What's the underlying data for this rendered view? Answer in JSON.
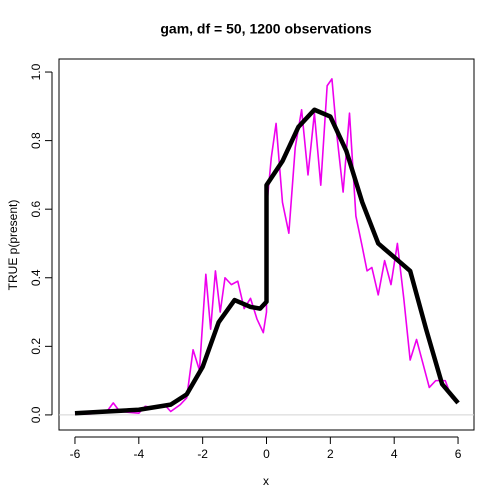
{
  "chart_data": {
    "type": "line",
    "title": "gam, df = 50, 1200 observations",
    "xlabel": "x",
    "ylabel": "TRUE p(present)",
    "xlim": [
      -6.5,
      6.5
    ],
    "ylim": [
      -0.044,
      1.038
    ],
    "xticks": [
      -6,
      -4,
      -2,
      0,
      2,
      4,
      6
    ],
    "yticks": [
      {
        "value": 0,
        "label": "0.0"
      },
      0.2,
      0.4,
      0.6,
      0.8,
      {
        "value": 1,
        "label": "1.0"
      }
    ],
    "hline": 0,
    "hline_color": "#d3d3d3",
    "series": [
      {
        "color": "#ee00ee",
        "linewidth": 1.6,
        "x": [
          -6,
          -5.5,
          -5,
          -4.8,
          -4.6,
          -4,
          -3.8,
          -3.5,
          -3.2,
          -3,
          -2.7,
          -2.5,
          -2.3,
          -2.1,
          -1.9,
          -1.75,
          -1.6,
          -1.45,
          -1.3,
          -1.1,
          -0.9,
          -0.7,
          -0.5,
          -0.3,
          -0.1,
          0,
          0,
          0.15,
          0.3,
          0.5,
          0.7,
          0.9,
          1.1,
          1.3,
          1.5,
          1.7,
          1.9,
          2.05,
          2.2,
          2.4,
          2.6,
          2.8,
          3.0,
          3.15,
          3.3,
          3.5,
          3.7,
          3.9,
          4.1,
          4.3,
          4.5,
          4.7,
          4.9,
          5.1,
          5.3,
          5.6,
          5.8,
          6
        ],
        "values": [
          0.002,
          0.003,
          0.01,
          0.035,
          0.01,
          0.005,
          0.025,
          0.02,
          0.03,
          0.01,
          0.03,
          0.05,
          0.19,
          0.13,
          0.41,
          0.25,
          0.42,
          0.3,
          0.4,
          0.38,
          0.39,
          0.31,
          0.34,
          0.28,
          0.24,
          0.3,
          0.6,
          0.75,
          0.85,
          0.62,
          0.53,
          0.78,
          0.89,
          0.7,
          0.88,
          0.67,
          0.96,
          0.98,
          0.82,
          0.65,
          0.88,
          0.58,
          0.49,
          0.42,
          0.43,
          0.35,
          0.45,
          0.38,
          0.5,
          0.34,
          0.16,
          0.22,
          0.15,
          0.08,
          0.1,
          0.1,
          0.05,
          0.04
        ]
      },
      {
        "color": "#000000",
        "linewidth": 4.5,
        "x": [
          -6,
          -5,
          -4,
          -3,
          -2.5,
          -2,
          -1.5,
          -1,
          -0.5,
          -0.2,
          0,
          0,
          0.5,
          1,
          1.5,
          2,
          2.5,
          3,
          3.5,
          4,
          4.5,
          5,
          5.5,
          6
        ],
        "values": [
          0.005,
          0.01,
          0.015,
          0.03,
          0.06,
          0.14,
          0.27,
          0.335,
          0.315,
          0.31,
          0.33,
          0.67,
          0.74,
          0.84,
          0.89,
          0.87,
          0.77,
          0.62,
          0.5,
          0.46,
          0.42,
          0.25,
          0.09,
          0.035
        ]
      }
    ]
  }
}
